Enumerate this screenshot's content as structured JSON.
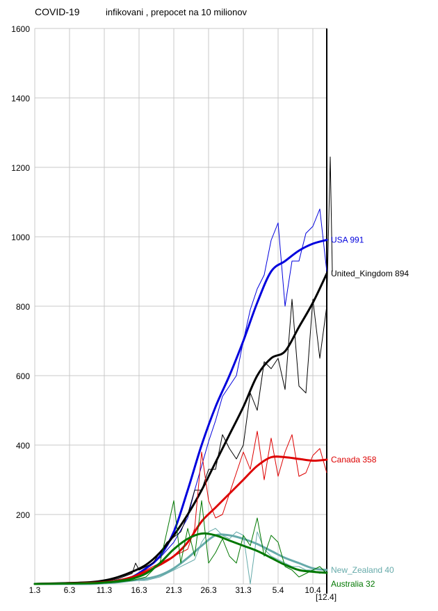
{
  "header": {
    "title": "COVID-19",
    "subtitle": "infikovani , prepocet na 10 milionov"
  },
  "chart_data": {
    "type": "line",
    "title": "COVID-19",
    "subtitle": "infikovani , prepocet na 10 milionov",
    "xlabel": "",
    "ylabel": "",
    "x_ticks": [
      "1.3",
      "6.3",
      "11.3",
      "16.3",
      "21.3",
      "26.3",
      "31.3",
      "5.4",
      "10.4"
    ],
    "x_end_label": "[12.4]",
    "x_day_range": [
      1,
      43
    ],
    "ylim": [
      0,
      1600
    ],
    "y_ticks": [
      1600,
      1400,
      1200,
      1000,
      800,
      600,
      400,
      200
    ],
    "grid": true,
    "series": [
      {
        "name": "USA",
        "end_label": "USA 991",
        "color": "#0000dd",
        "raw": [
          [
            1,
            0
          ],
          [
            5,
            1
          ],
          [
            9,
            3
          ],
          [
            11,
            6
          ],
          [
            13,
            12
          ],
          [
            15,
            20
          ],
          [
            17,
            45
          ],
          [
            19,
            75
          ],
          [
            21,
            120
          ],
          [
            23,
            190
          ],
          [
            24,
            270
          ],
          [
            25,
            340
          ],
          [
            26,
            410
          ],
          [
            27,
            470
          ],
          [
            28,
            540
          ],
          [
            29,
            570
          ],
          [
            30,
            600
          ],
          [
            31,
            700
          ],
          [
            32,
            790
          ],
          [
            33,
            850
          ],
          [
            34,
            890
          ],
          [
            35,
            990
          ],
          [
            36,
            1040
          ],
          [
            37,
            800
          ],
          [
            38,
            930
          ],
          [
            39,
            930
          ],
          [
            40,
            1010
          ],
          [
            41,
            1030
          ],
          [
            42,
            1080
          ],
          [
            43,
            900
          ]
        ],
        "smooth": [
          [
            1,
            0
          ],
          [
            5,
            1
          ],
          [
            9,
            3
          ],
          [
            11,
            5
          ],
          [
            13,
            10
          ],
          [
            15,
            20
          ],
          [
            17,
            45
          ],
          [
            19,
            80
          ],
          [
            21,
            150
          ],
          [
            23,
            270
          ],
          [
            25,
            400
          ],
          [
            27,
            510
          ],
          [
            29,
            600
          ],
          [
            31,
            700
          ],
          [
            33,
            810
          ],
          [
            35,
            900
          ],
          [
            37,
            930
          ],
          [
            39,
            960
          ],
          [
            41,
            980
          ],
          [
            43,
            991
          ]
        ]
      },
      {
        "name": "United_Kingdom",
        "end_label": "United_Kingdom 894",
        "color": "#000000",
        "raw": [
          [
            1,
            0
          ],
          [
            5,
            1
          ],
          [
            9,
            3
          ],
          [
            11,
            8
          ],
          [
            13,
            15
          ],
          [
            15,
            30
          ],
          [
            15.5,
            60
          ],
          [
            16,
            40
          ],
          [
            18,
            60
          ],
          [
            20,
            120
          ],
          [
            22,
            150
          ],
          [
            23,
            200
          ],
          [
            24,
            270
          ],
          [
            25,
            270
          ],
          [
            26,
            330
          ],
          [
            27,
            330
          ],
          [
            28,
            430
          ],
          [
            29,
            390
          ],
          [
            30,
            360
          ],
          [
            31,
            400
          ],
          [
            32,
            550
          ],
          [
            33,
            500
          ],
          [
            34,
            640
          ],
          [
            35,
            620
          ],
          [
            36,
            650
          ],
          [
            37,
            560
          ],
          [
            38,
            820
          ],
          [
            39,
            570
          ],
          [
            40,
            550
          ],
          [
            41,
            820
          ],
          [
            42,
            650
          ],
          [
            43,
            800
          ],
          [
            43.5,
            1230
          ],
          [
            43.8,
            900
          ]
        ],
        "smooth": [
          [
            1,
            0
          ],
          [
            5,
            2
          ],
          [
            9,
            5
          ],
          [
            11,
            10
          ],
          [
            13,
            20
          ],
          [
            15,
            35
          ],
          [
            17,
            55
          ],
          [
            19,
            90
          ],
          [
            21,
            140
          ],
          [
            23,
            200
          ],
          [
            25,
            270
          ],
          [
            27,
            350
          ],
          [
            29,
            430
          ],
          [
            31,
            510
          ],
          [
            33,
            600
          ],
          [
            35,
            650
          ],
          [
            37,
            670
          ],
          [
            39,
            740
          ],
          [
            41,
            810
          ],
          [
            43,
            894
          ]
        ]
      },
      {
        "name": "Canada",
        "end_label": "Canada 358",
        "color": "#dd0000",
        "raw": [
          [
            1,
            0
          ],
          [
            5,
            1
          ],
          [
            9,
            2
          ],
          [
            11,
            5
          ],
          [
            13,
            10
          ],
          [
            15,
            20
          ],
          [
            17,
            40
          ],
          [
            19,
            60
          ],
          [
            21,
            80
          ],
          [
            23,
            100
          ],
          [
            24,
            160
          ],
          [
            25,
            380
          ],
          [
            26,
            240
          ],
          [
            27,
            190
          ],
          [
            28,
            200
          ],
          [
            29,
            260
          ],
          [
            30,
            320
          ],
          [
            31,
            380
          ],
          [
            32,
            330
          ],
          [
            33,
            440
          ],
          [
            34,
            300
          ],
          [
            35,
            420
          ],
          [
            36,
            310
          ],
          [
            37,
            380
          ],
          [
            38,
            430
          ],
          [
            39,
            310
          ],
          [
            40,
            320
          ],
          [
            41,
            370
          ],
          [
            42,
            390
          ],
          [
            43,
            320
          ]
        ],
        "smooth": [
          [
            1,
            0
          ],
          [
            5,
            1
          ],
          [
            9,
            3
          ],
          [
            11,
            5
          ],
          [
            13,
            10
          ],
          [
            15,
            20
          ],
          [
            17,
            35
          ],
          [
            19,
            55
          ],
          [
            21,
            80
          ],
          [
            23,
            120
          ],
          [
            25,
            180
          ],
          [
            27,
            220
          ],
          [
            29,
            260
          ],
          [
            31,
            300
          ],
          [
            33,
            340
          ],
          [
            35,
            365
          ],
          [
            37,
            365
          ],
          [
            39,
            360
          ],
          [
            41,
            355
          ],
          [
            43,
            358
          ]
        ]
      },
      {
        "name": "New_Zealand",
        "end_label": "New_Zealand 40",
        "color": "#66aaaa",
        "raw": [
          [
            1,
            0
          ],
          [
            5,
            0
          ],
          [
            9,
            0
          ],
          [
            11,
            0
          ],
          [
            13,
            5
          ],
          [
            15,
            10
          ],
          [
            17,
            10
          ],
          [
            19,
            20
          ],
          [
            21,
            40
          ],
          [
            23,
            60
          ],
          [
            24,
            70
          ],
          [
            25,
            120
          ],
          [
            26,
            150
          ],
          [
            27,
            160
          ],
          [
            28,
            140
          ],
          [
            29,
            130
          ],
          [
            30,
            150
          ],
          [
            31,
            140
          ],
          [
            32,
            0
          ],
          [
            33,
            150
          ],
          [
            34,
            100
          ],
          [
            35,
            80
          ],
          [
            36,
            70
          ],
          [
            37,
            60
          ],
          [
            38,
            50
          ],
          [
            39,
            50
          ],
          [
            40,
            40
          ],
          [
            41,
            40
          ],
          [
            42,
            30
          ],
          [
            43,
            40
          ]
        ],
        "smooth": [
          [
            1,
            0
          ],
          [
            5,
            0
          ],
          [
            9,
            0
          ],
          [
            11,
            2
          ],
          [
            13,
            5
          ],
          [
            15,
            10
          ],
          [
            17,
            15
          ],
          [
            19,
            25
          ],
          [
            21,
            45
          ],
          [
            23,
            75
          ],
          [
            25,
            110
          ],
          [
            27,
            140
          ],
          [
            29,
            140
          ],
          [
            31,
            130
          ],
          [
            33,
            115
          ],
          [
            35,
            95
          ],
          [
            37,
            75
          ],
          [
            39,
            60
          ],
          [
            41,
            45
          ],
          [
            43,
            40
          ]
        ]
      },
      {
        "name": "Australia",
        "end_label": "Australia 32",
        "color": "#007700",
        "raw": [
          [
            1,
            0
          ],
          [
            5,
            0
          ],
          [
            9,
            1
          ],
          [
            11,
            2
          ],
          [
            13,
            5
          ],
          [
            15,
            10
          ],
          [
            17,
            20
          ],
          [
            19,
            60
          ],
          [
            21,
            240
          ],
          [
            22,
            60
          ],
          [
            23,
            160
          ],
          [
            24,
            80
          ],
          [
            25,
            240
          ],
          [
            26,
            60
          ],
          [
            27,
            90
          ],
          [
            28,
            130
          ],
          [
            29,
            80
          ],
          [
            30,
            60
          ],
          [
            31,
            140
          ],
          [
            32,
            110
          ],
          [
            33,
            190
          ],
          [
            34,
            80
          ],
          [
            35,
            140
          ],
          [
            36,
            120
          ],
          [
            37,
            50
          ],
          [
            38,
            40
          ],
          [
            39,
            20
          ],
          [
            40,
            30
          ],
          [
            41,
            40
          ],
          [
            42,
            50
          ],
          [
            43,
            30
          ]
        ],
        "smooth": [
          [
            1,
            0
          ],
          [
            5,
            1
          ],
          [
            9,
            2
          ],
          [
            11,
            4
          ],
          [
            13,
            8
          ],
          [
            15,
            15
          ],
          [
            17,
            30
          ],
          [
            19,
            60
          ],
          [
            21,
            100
          ],
          [
            23,
            130
          ],
          [
            25,
            145
          ],
          [
            27,
            140
          ],
          [
            29,
            125
          ],
          [
            31,
            110
          ],
          [
            33,
            95
          ],
          [
            35,
            75
          ],
          [
            37,
            55
          ],
          [
            39,
            40
          ],
          [
            41,
            35
          ],
          [
            43,
            32
          ]
        ]
      }
    ]
  }
}
